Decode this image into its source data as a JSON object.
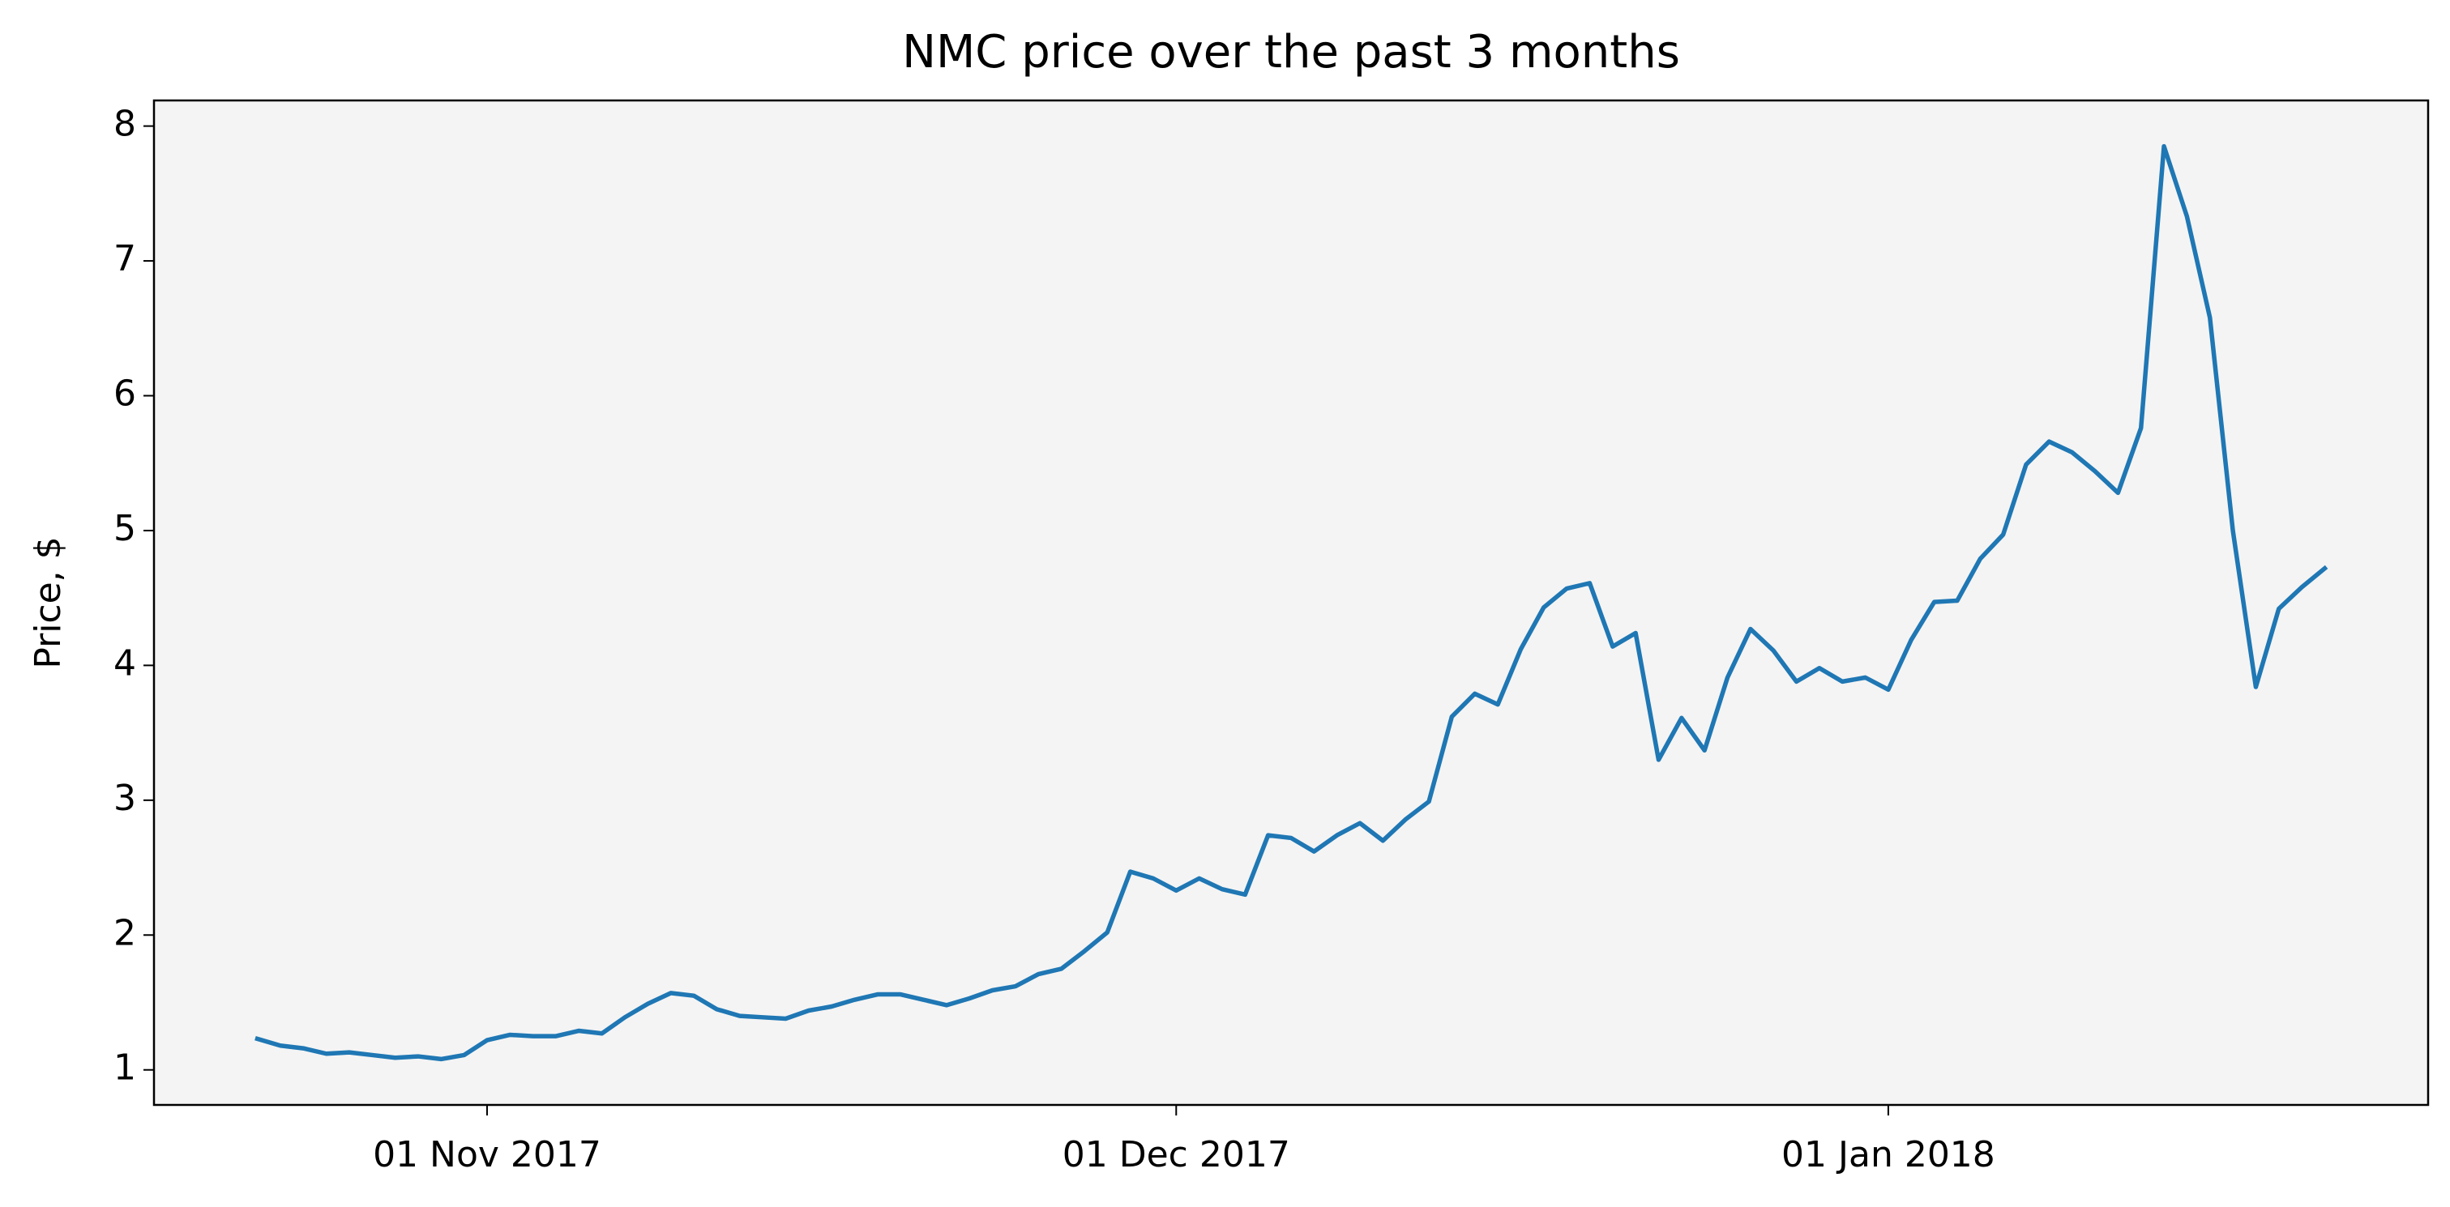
{
  "chart_data": {
    "type": "line",
    "title": "NMC price over the past 3 months",
    "y_label": "Price, $",
    "color": "#1f77b4",
    "x": [
      "2017-10-22",
      "2017-10-23",
      "2017-10-24",
      "2017-10-25",
      "2017-10-26",
      "2017-10-27",
      "2017-10-28",
      "2017-10-29",
      "2017-10-30",
      "2017-10-31",
      "2017-11-01",
      "2017-11-02",
      "2017-11-03",
      "2017-11-04",
      "2017-11-05",
      "2017-11-06",
      "2017-11-07",
      "2017-11-08",
      "2017-11-09",
      "2017-11-10",
      "2017-11-11",
      "2017-11-12",
      "2017-11-13",
      "2017-11-14",
      "2017-11-15",
      "2017-11-16",
      "2017-11-17",
      "2017-11-18",
      "2017-11-19",
      "2017-11-20",
      "2017-11-21",
      "2017-11-22",
      "2017-11-23",
      "2017-11-24",
      "2017-11-25",
      "2017-11-26",
      "2017-11-27",
      "2017-11-28",
      "2017-11-29",
      "2017-11-30",
      "2017-12-01",
      "2017-12-02",
      "2017-12-03",
      "2017-12-04",
      "2017-12-05",
      "2017-12-06",
      "2017-12-07",
      "2017-12-08",
      "2017-12-09",
      "2017-12-10",
      "2017-12-11",
      "2017-12-12",
      "2017-12-13",
      "2017-12-14",
      "2017-12-15",
      "2017-12-16",
      "2017-12-17",
      "2017-12-18",
      "2017-12-19",
      "2017-12-20",
      "2017-12-21",
      "2017-12-22",
      "2017-12-23",
      "2017-12-24",
      "2017-12-25",
      "2017-12-26",
      "2017-12-27",
      "2017-12-28",
      "2017-12-29",
      "2017-12-30",
      "2017-12-31",
      "2018-01-01",
      "2018-01-02",
      "2018-01-03",
      "2018-01-04",
      "2018-01-05",
      "2018-01-06",
      "2018-01-07",
      "2018-01-08",
      "2018-01-09",
      "2018-01-10",
      "2018-01-11",
      "2018-01-12",
      "2018-01-13",
      "2018-01-14",
      "2018-01-15",
      "2018-01-16",
      "2018-01-17",
      "2018-01-18",
      "2018-01-19",
      "2018-01-20"
    ],
    "values": [
      1.23,
      1.18,
      1.16,
      1.12,
      1.13,
      1.11,
      1.09,
      1.1,
      1.08,
      1.11,
      1.22,
      1.26,
      1.25,
      1.25,
      1.29,
      1.27,
      1.39,
      1.49,
      1.57,
      1.55,
      1.45,
      1.4,
      1.39,
      1.38,
      1.44,
      1.47,
      1.52,
      1.56,
      1.56,
      1.52,
      1.48,
      1.53,
      1.59,
      1.62,
      1.71,
      1.75,
      1.88,
      2.02,
      2.47,
      2.42,
      2.33,
      2.42,
      2.34,
      2.3,
      2.74,
      2.72,
      2.62,
      2.74,
      2.83,
      2.7,
      2.86,
      2.99,
      3.62,
      3.79,
      3.71,
      4.12,
      4.43,
      4.57,
      4.61,
      4.14,
      4.24,
      3.3,
      3.61,
      3.37,
      3.91,
      4.27,
      4.11,
      3.88,
      3.98,
      3.88,
      3.91,
      3.82,
      4.19,
      4.47,
      4.48,
      4.79,
      4.97,
      5.49,
      5.66,
      5.58,
      5.44,
      5.28,
      5.76,
      7.85,
      7.33,
      6.58,
      5.0,
      3.84,
      4.42,
      4.58,
      4.72
    ],
    "xlim": [
      "2017-10-17T12:00:00Z",
      "2018-01-24T12:00:00Z"
    ],
    "xticks": [
      {
        "value": "2017-11-01",
        "label": "01 Nov 2017"
      },
      {
        "value": "2017-12-01",
        "label": "01 Dec 2017"
      },
      {
        "value": "2018-01-01",
        "label": "01 Jan 2018"
      }
    ],
    "ylim": [
      0.74,
      8.19
    ],
    "yticks": [
      1,
      2,
      3,
      4,
      5,
      6,
      7,
      8
    ],
    "grid": false,
    "background": "#f4f4f4"
  }
}
